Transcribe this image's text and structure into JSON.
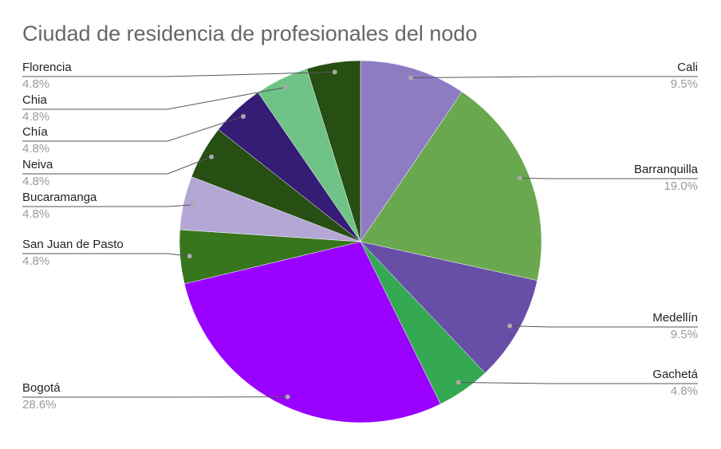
{
  "chart_data": {
    "type": "pie",
    "title": "Ciudad de residencia de profesionales del nodo",
    "categories": [
      "Cali",
      "Barranquilla",
      "Medellín",
      "Gachetá",
      "Bogotá",
      "San Juan de Pasto",
      "Bucaramanga",
      "Neiva",
      "Chía",
      "Chia",
      "Florencia"
    ],
    "values": [
      9.5,
      19.0,
      9.5,
      4.8,
      28.6,
      4.8,
      4.8,
      4.8,
      4.8,
      4.8,
      4.8
    ],
    "value_labels": [
      "9.5%",
      "19.0%",
      "9.5%",
      "4.8%",
      "28.6%",
      "4.8%",
      "4.8%",
      "4.8%",
      "4.8%",
      "4.8%",
      "4.8%"
    ],
    "colors": [
      "#8e7cc3",
      "#6aa84f",
      "#674ea7",
      "#34a853",
      "#9900ff",
      "#38761d",
      "#b4a7d6",
      "#274e13",
      "#351c75",
      "#6fc387",
      "#274e13"
    ]
  }
}
